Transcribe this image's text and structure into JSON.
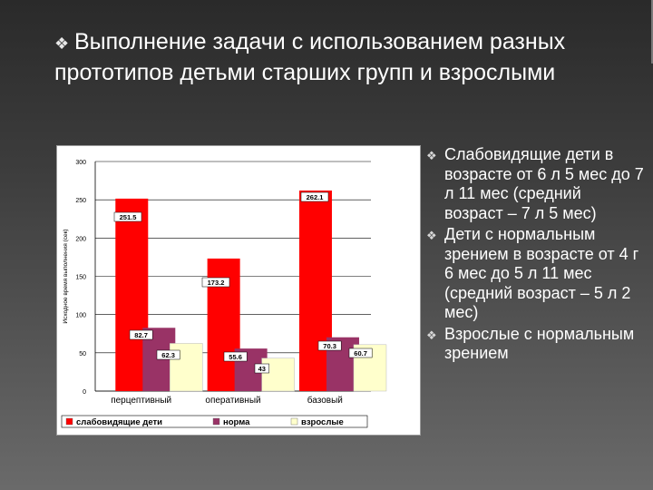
{
  "slide": {
    "title": "Выполнение задачи с использованием разных прототипов детьми старших групп и взрослыми",
    "title_icon": "diamond-bullet-icon"
  },
  "bullets": [
    "Слабовидящие дети в возрасте от 6 л 5 мес до 7 л 11 мес (средний возраст – 7 л 5 мес)",
    "Дети с нормальным зрением в возрасте от 4 г 6 мес до 5 л 11 мес (средний возраст – 5 л 2 мес)",
    "Взрослые с нормальным зрением"
  ],
  "chart_data": {
    "type": "bar",
    "title": "",
    "xlabel": "",
    "ylabel": "Исходное время выполнения (сек)",
    "ylim": [
      0,
      300
    ],
    "yticks": [
      0,
      50,
      100,
      150,
      200,
      250,
      300
    ],
    "categories": [
      "перцептивный",
      "оперативный",
      "базовый"
    ],
    "series": [
      {
        "name": "слабовидящие дети",
        "color": "#ff0000",
        "values": [
          251.5,
          173.2,
          262.1
        ]
      },
      {
        "name": "норма",
        "color": "#993366",
        "values": [
          82.7,
          55.6,
          70.3
        ]
      },
      {
        "name": "взрослые",
        "color": "#ffffcc",
        "values": [
          62.3,
          43,
          60.7
        ]
      }
    ],
    "legend_position": "bottom",
    "grid": true
  }
}
